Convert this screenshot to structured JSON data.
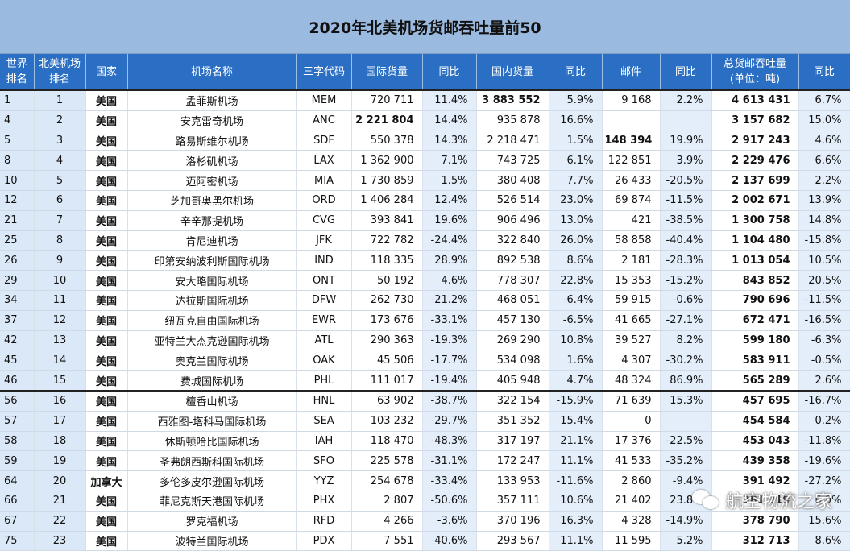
{
  "title": "2020年北美机场货邮吞吐量前50",
  "headers": [
    [
      "世界",
      "排名"
    ],
    [
      "北美机场",
      "排名"
    ],
    [
      "国家"
    ],
    [
      "机场名称"
    ],
    [
      "三字代码"
    ],
    [
      "国际货量"
    ],
    [
      "同比"
    ],
    [
      "国内货量"
    ],
    [
      "同比"
    ],
    [
      "邮件"
    ],
    [
      "同比"
    ],
    [
      "总货邮吞吐量",
      "(单位：吨)"
    ],
    [
      "同比"
    ]
  ],
  "rows": [
    [
      "1",
      "1",
      "美国",
      "孟菲斯机场",
      "MEM",
      "720 711",
      "11.4%",
      "3 883 552",
      "5.9%",
      "9 168",
      "2.2%",
      "4 613 431",
      "6.7%"
    ],
    [
      "4",
      "2",
      "美国",
      "安克雷奇机场",
      "ANC",
      "2 221 804",
      "14.4%",
      "935 878",
      "16.6%",
      "",
      "",
      "3 157 682",
      "15.0%"
    ],
    [
      "5",
      "3",
      "美国",
      "路易斯维尔机场",
      "SDF",
      "550 378",
      "14.3%",
      "2 218 471",
      "1.5%",
      "148 394",
      "19.9%",
      "2 917 243",
      "4.6%"
    ],
    [
      "8",
      "4",
      "美国",
      "洛杉矶机场",
      "LAX",
      "1 362 900",
      "7.1%",
      "743 725",
      "6.1%",
      "122 851",
      "3.9%",
      "2 229 476",
      "6.6%"
    ],
    [
      "10",
      "5",
      "美国",
      "迈阿密机场",
      "MIA",
      "1 730 859",
      "1.5%",
      "380 408",
      "7.7%",
      "26 433",
      "-20.5%",
      "2 137 699",
      "2.2%"
    ],
    [
      "12",
      "6",
      "美国",
      "芝加哥奥黑尔机场",
      "ORD",
      "1 406 284",
      "12.4%",
      "526 514",
      "23.0%",
      "69 874",
      "-11.5%",
      "2 002 671",
      "13.9%"
    ],
    [
      "21",
      "7",
      "美国",
      "辛辛那提机场",
      "CVG",
      "393 841",
      "19.6%",
      "906 496",
      "13.0%",
      "421",
      "-38.5%",
      "1 300 758",
      "14.8%"
    ],
    [
      "25",
      "8",
      "美国",
      "肯尼迪机场",
      "JFK",
      "722 782",
      "-24.4%",
      "322 840",
      "26.0%",
      "58 858",
      "-40.4%",
      "1 104 480",
      "-15.8%"
    ],
    [
      "26",
      "9",
      "美国",
      "印第安纳波利斯国际机场",
      "IND",
      "118 335",
      "28.9%",
      "892 538",
      "8.6%",
      "2 181",
      "-28.3%",
      "1 013 054",
      "10.5%"
    ],
    [
      "29",
      "10",
      "美国",
      "安大略国际机场",
      "ONT",
      "50 192",
      "4.6%",
      "778 307",
      "22.8%",
      "15 353",
      "-15.2%",
      "843 852",
      "20.5%"
    ],
    [
      "34",
      "11",
      "美国",
      "达拉斯国际机场",
      "DFW",
      "262 730",
      "-21.2%",
      "468 051",
      "-6.4%",
      "59 915",
      "-0.6%",
      "790 696",
      "-11.5%"
    ],
    [
      "37",
      "12",
      "美国",
      "纽瓦克自由国际机场",
      "EWR",
      "173 676",
      "-33.1%",
      "457 130",
      "-6.5%",
      "41 665",
      "-27.1%",
      "672 471",
      "-16.5%"
    ],
    [
      "42",
      "13",
      "美国",
      "亚特兰大杰克逊国际机场",
      "ATL",
      "290 363",
      "-19.3%",
      "269 290",
      "10.8%",
      "39 527",
      "8.2%",
      "599 180",
      "-6.3%"
    ],
    [
      "45",
      "14",
      "美国",
      "奥克兰国际机场",
      "OAK",
      "45 506",
      "-17.7%",
      "534 098",
      "1.6%",
      "4 307",
      "-30.2%",
      "583 911",
      "-0.5%"
    ],
    [
      "46",
      "15",
      "美国",
      "费城国际机场",
      "PHL",
      "111 017",
      "-19.4%",
      "405 948",
      "4.7%",
      "48 324",
      "86.9%",
      "565 289",
      "2.6%"
    ],
    [
      "56",
      "16",
      "美国",
      "檀香山机场",
      "HNL",
      "63 902",
      "-38.7%",
      "322 154",
      "-15.9%",
      "71 639",
      "15.3%",
      "457 695",
      "-16.7%"
    ],
    [
      "57",
      "17",
      "美国",
      "西雅图-塔科马国际机场",
      "SEA",
      "103 232",
      "-29.7%",
      "351 352",
      "15.4%",
      "0",
      "",
      "454 584",
      "0.2%"
    ],
    [
      "58",
      "18",
      "美国",
      "休斯顿哈比国际机场",
      "IAH",
      "118 470",
      "-48.3%",
      "317 197",
      "21.1%",
      "17 376",
      "-22.5%",
      "453 043",
      "-11.8%"
    ],
    [
      "59",
      "19",
      "美国",
      "圣弗朗西斯科国际机场",
      "SFO",
      "225 578",
      "-31.1%",
      "172 247",
      "11.1%",
      "41 533",
      "-35.2%",
      "439 358",
      "-19.6%"
    ],
    [
      "64",
      "20",
      "加拿大",
      "多伦多皮尔逊国际机场",
      "YYZ",
      "254 678",
      "-33.4%",
      "133 953",
      "-11.6%",
      "2 860",
      "-9.4%",
      "391 492",
      "-27.2%"
    ],
    [
      "66",
      "21",
      "美国",
      "菲尼克斯天港国际机场",
      "PHX",
      "2 807",
      "-50.6%",
      "357 111",
      "10.6%",
      "21 402",
      "23.8%",
      "381 319",
      "6.9%"
    ],
    [
      "67",
      "22",
      "美国",
      "罗克福机场",
      "RFD",
      "4 266",
      "-3.6%",
      "370 196",
      "16.3%",
      "4 328",
      "-14.9%",
      "378 790",
      "15.6%"
    ],
    [
      "75",
      "23",
      "美国",
      "波特兰国际机场",
      "PDX",
      "7 551",
      "-40.6%",
      "293 567",
      "11.1%",
      "11 595",
      "5.2%",
      "312 713",
      "8.6%"
    ]
  ],
  "bold_cells": [
    [
      0,
      7
    ],
    [
      1,
      5
    ],
    [
      2,
      9
    ]
  ],
  "watermark": "航空物流之家",
  "colors": {
    "title_bg": "#9bbadf",
    "header_bg": "#2a6fc4",
    "rank_bg": "#dbe8f7",
    "shade_bg": "#e3eefa"
  }
}
